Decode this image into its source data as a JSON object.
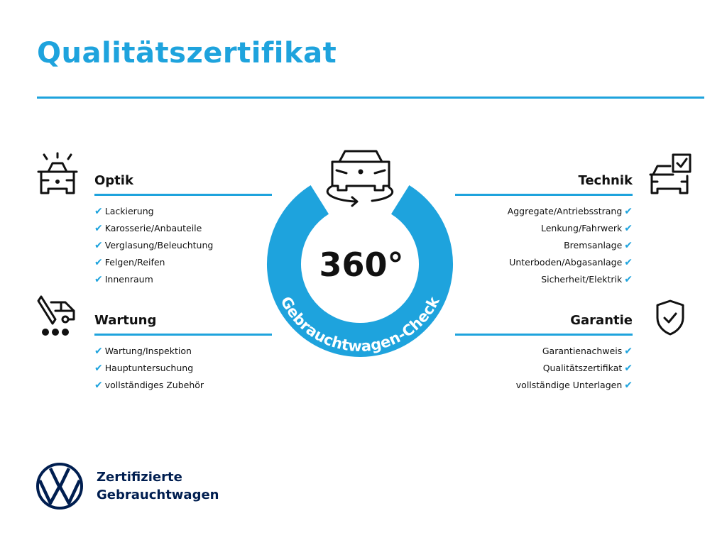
{
  "title": "Qualitätszertifikat",
  "center": {
    "number": "360°",
    "ring_text": "Gebrauchtwagen-Check"
  },
  "sections": {
    "optik": {
      "heading": "Optik",
      "items": [
        "Lackierung",
        "Karosserie/Anbauteile",
        "Verglasung/Beleuchtung",
        "Felgen/Reifen",
        "Innenraum"
      ]
    },
    "wartung": {
      "heading": "Wartung",
      "items": [
        "Wartung/Inspektion",
        "Hauptuntersuchung",
        "vollständiges Zubehör"
      ]
    },
    "technik": {
      "heading": "Technik",
      "items": [
        "Aggregate/Antriebsstrang",
        "Lenkung/Fahrwerk",
        "Bremsanlage",
        "Unterboden/Abgasanlage",
        "Sicherheit/Elektrik"
      ]
    },
    "garantie": {
      "heading": "Garantie",
      "items": [
        "Garantienachweis",
        "Qualitätszertifikat",
        "vollständige Unterlagen"
      ]
    }
  },
  "check": "✔",
  "footer": {
    "line1": "Zertifizierte",
    "line2": "Gebrauchtwagen",
    "logo_text": "VW"
  },
  "colors": {
    "accent": "#1ea3dd",
    "brand_navy": "#001e50"
  }
}
